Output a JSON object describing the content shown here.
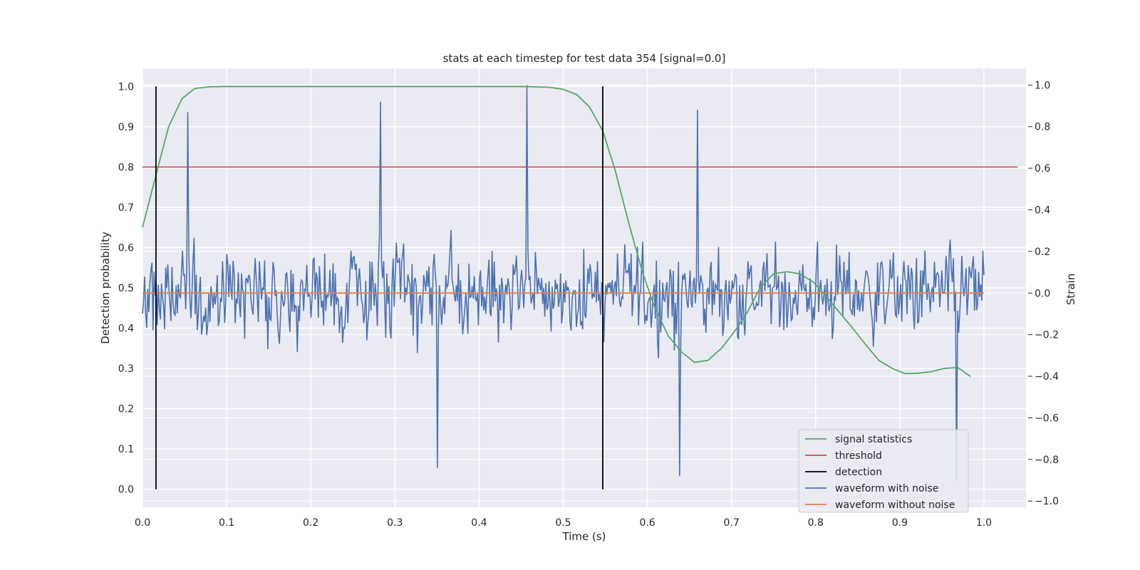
{
  "chart_data": {
    "type": "line",
    "title": "stats at each timestep for test data 354 [signal=0.0]",
    "xlabel": "Time (s)",
    "ylabel_left": "Detection probability",
    "ylabel_right": "Strain",
    "xlim": [
      0.0,
      1.05
    ],
    "ylim_left": [
      -0.045,
      1.045
    ],
    "ylim_right": [
      -1.03,
      1.08
    ],
    "x_ticks": [
      0.0,
      0.1,
      0.2,
      0.3,
      0.4,
      0.5,
      0.6,
      0.7,
      0.8,
      0.9,
      1.0
    ],
    "x_tick_labels": [
      "0.0",
      "0.1",
      "0.2",
      "0.3",
      "0.4",
      "0.5",
      "0.6",
      "0.7",
      "0.8",
      "0.9",
      "1.0"
    ],
    "y_left_ticks": [
      0.0,
      0.1,
      0.2,
      0.3,
      0.4,
      0.5,
      0.6,
      0.7,
      0.8,
      0.9,
      1.0
    ],
    "y_left_tick_labels": [
      "0.0",
      "0.1",
      "0.2",
      "0.3",
      "0.4",
      "0.5",
      "0.6",
      "0.7",
      "0.8",
      "0.9",
      "1.0"
    ],
    "y_right_ticks": [
      -1.0,
      -0.8,
      -0.6,
      -0.4,
      -0.2,
      0.0,
      0.2,
      0.4,
      0.6,
      0.8,
      1.0
    ],
    "y_right_tick_labels": [
      "−1.0",
      "−0.8",
      "−0.6",
      "−0.4",
      "−0.2",
      "0.0",
      "0.2",
      "0.4",
      "0.6",
      "0.8",
      "1.0"
    ],
    "grid": true,
    "legend_position": "bottom-right",
    "series": [
      {
        "name": "signal statistics",
        "axis": "left",
        "color": "#55a868",
        "x": [
          0.0,
          0.016,
          0.031,
          0.047,
          0.062,
          0.078,
          0.094,
          0.109,
          0.125,
          0.3,
          0.45,
          0.469,
          0.484,
          0.5,
          0.516,
          0.531,
          0.547,
          0.562,
          0.578,
          0.594,
          0.609,
          0.625,
          0.641,
          0.656,
          0.672,
          0.688,
          0.703,
          0.719,
          0.734,
          0.75,
          0.766,
          0.781,
          0.797,
          0.812,
          0.828,
          0.844,
          0.859,
          0.875,
          0.891,
          0.906,
          0.922,
          0.938,
          0.953,
          0.969,
          0.984
        ],
        "y": [
          0.65,
          0.78,
          0.9,
          0.97,
          0.995,
          0.999,
          1.0,
          1.0,
          1.0,
          1.0,
          1.0,
          0.999,
          0.998,
          0.993,
          0.98,
          0.95,
          0.89,
          0.79,
          0.66,
          0.54,
          0.45,
          0.38,
          0.34,
          0.315,
          0.32,
          0.35,
          0.39,
          0.44,
          0.5,
          0.535,
          0.54,
          0.535,
          0.515,
          0.48,
          0.44,
          0.4,
          0.36,
          0.32,
          0.3,
          0.287,
          0.288,
          0.292,
          0.3,
          0.302,
          0.28
        ]
      },
      {
        "name": "threshold",
        "axis": "left",
        "color": "#c44e52",
        "x": [
          0.0,
          1.04
        ],
        "y": [
          0.8,
          0.8
        ]
      },
      {
        "name": "detection",
        "axis": "left",
        "color": "#000000",
        "segments": [
          {
            "x": 0.016,
            "y": [
              0.0,
              1.0
            ]
          },
          {
            "x": 0.547,
            "y": [
              0.0,
              1.0
            ]
          }
        ]
      },
      {
        "name": "waveform with noise",
        "axis": "right",
        "color": "#4c72b0",
        "x_start": 0.0,
        "x_end": 1.0,
        "amplitude_range": [
          -0.9,
          1.0
        ],
        "peak_points": [
          {
            "x": 0.457,
            "y": 1.0
          },
          {
            "x": 0.283,
            "y": 0.92
          },
          {
            "x": 0.66,
            "y": 0.88
          },
          {
            "x": 0.054,
            "y": 0.87
          },
          {
            "x": 0.35,
            "y": -0.84
          },
          {
            "x": 0.638,
            "y": -0.88
          },
          {
            "x": 0.967,
            "y": -0.92
          }
        ]
      },
      {
        "name": "waveform without noise",
        "axis": "right",
        "color": "#dd8452",
        "x": [
          0.0,
          1.0
        ],
        "y": [
          0.0,
          0.0
        ]
      }
    ]
  }
}
